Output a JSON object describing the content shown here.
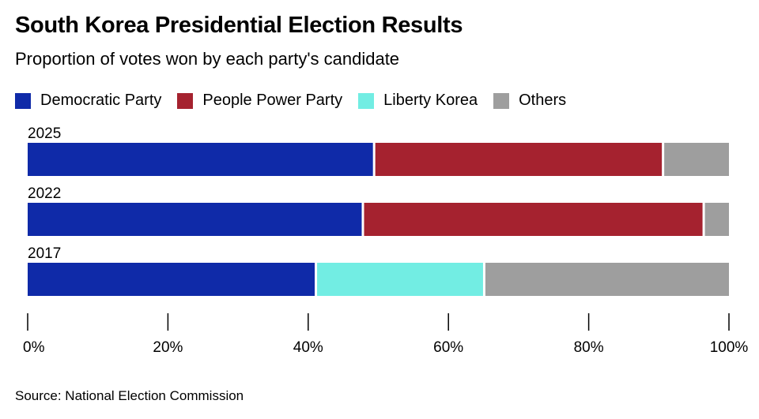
{
  "title": "South Korea Presidential Election Results",
  "subtitle": "Proportion of votes won by each party's candidate",
  "source": "Source: National Election Commission",
  "colors": {
    "Democratic Party": "#0f2aa8",
    "People Power Party": "#a5222f",
    "Liberty Korea": "#72ede3",
    "Others": "#9e9e9e"
  },
  "chart_data": {
    "type": "bar",
    "orientation": "horizontal",
    "stacked": true,
    "categories": [
      "2025",
      "2022",
      "2017"
    ],
    "series": [
      {
        "name": "Democratic Party",
        "values": [
          49.4,
          47.8,
          41.1
        ]
      },
      {
        "name": "People Power Party",
        "values": [
          41.2,
          48.6,
          0
        ]
      },
      {
        "name": "Liberty Korea",
        "values": [
          0,
          0,
          24.0
        ]
      },
      {
        "name": "Others",
        "values": [
          9.4,
          3.6,
          34.9
        ]
      }
    ],
    "xlim": [
      0,
      100
    ],
    "x_ticks": [
      "0%",
      "20%",
      "40%",
      "60%",
      "80%",
      "100%"
    ],
    "legend": [
      "Democratic Party",
      "People Power Party",
      "Liberty Korea",
      "Others"
    ],
    "legend_position": "top-left",
    "grid": false
  }
}
